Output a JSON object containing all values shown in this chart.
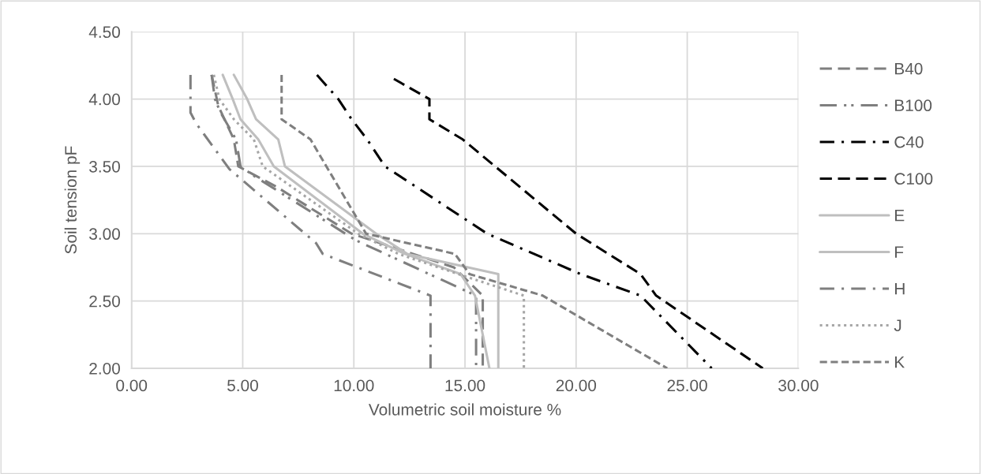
{
  "chart_data": {
    "type": "line",
    "xlabel": "Volumetric soil moisture %",
    "ylabel": "Soil tension pF",
    "xlim": [
      0,
      30
    ],
    "ylim": [
      2,
      4.5
    ],
    "xticks": [
      {
        "value": 0,
        "label": "0.00"
      },
      {
        "value": 5,
        "label": "5.00"
      },
      {
        "value": 10,
        "label": "10.00"
      },
      {
        "value": 15,
        "label": "15.00"
      },
      {
        "value": 20,
        "label": "20.00"
      },
      {
        "value": 25,
        "label": "25.00"
      },
      {
        "value": 30,
        "label": "30.00"
      }
    ],
    "yticks": [
      {
        "value": 2,
        "label": "2.00"
      },
      {
        "value": 2.5,
        "label": "2.50"
      },
      {
        "value": 3,
        "label": "3.00"
      },
      {
        "value": 3.5,
        "label": "3.50"
      },
      {
        "value": 4,
        "label": "4.00"
      },
      {
        "value": 4.5,
        "label": "4.50"
      }
    ],
    "grid": true,
    "legend": "right",
    "marker": "none",
    "series": [
      {
        "name": "B40",
        "color": "#7f7f7f",
        "line_style": "dashed",
        "x": [
          3.6,
          3.9,
          4.6,
          4.8,
          6.5,
          9.9,
          14.5,
          15.8,
          15.8
        ],
        "values": [
          4.18,
          3.95,
          3.7,
          3.5,
          3.35,
          3.0,
          2.75,
          2.54,
          2.0
        ]
      },
      {
        "name": "B100",
        "color": "#7f7f7f",
        "line_style": "dashdotdot",
        "x": [
          3.6,
          3.75,
          4.0,
          4.7,
          4.9,
          5.5,
          10.1,
          15.5,
          15.5
        ],
        "values": [
          4.18,
          4.0,
          3.9,
          3.7,
          3.5,
          3.43,
          2.95,
          2.54,
          2.0
        ]
      },
      {
        "name": "C40",
        "color": "#000000",
        "line_style": "dashdot",
        "x": [
          8.34,
          9.3,
          9.9,
          10.6,
          11.4,
          16.0,
          20.2,
          22.9,
          26.1
        ],
        "values": [
          4.18,
          4.0,
          3.85,
          3.7,
          3.5,
          3.0,
          2.7,
          2.54,
          2.0
        ]
      },
      {
        "name": "C100",
        "color": "#000000",
        "line_style": "dashed",
        "x": [
          11.8,
          13.4,
          13.4,
          14.9,
          20.0,
          22.9,
          23.6,
          28.4
        ],
        "values": [
          4.15,
          4.0,
          3.85,
          3.7,
          3.0,
          2.7,
          2.54,
          2.0
        ]
      },
      {
        "name": "E",
        "color": "#bfbfbf",
        "line_style": "solid",
        "x": [
          4.6,
          5.2,
          5.6,
          6.6,
          6.9,
          11.0,
          12.4,
          16.5,
          16.5
        ],
        "values": [
          4.18,
          4.0,
          3.85,
          3.7,
          3.5,
          3.0,
          2.85,
          2.7,
          2.0
        ]
      },
      {
        "name": "F",
        "color": "#bfbfbf",
        "line_style": "solid",
        "x": [
          4.1,
          4.55,
          4.9,
          5.7,
          6.4,
          10.4,
          12.3,
          14.8,
          15.45,
          16.1
        ],
        "values": [
          4.18,
          4.0,
          3.85,
          3.7,
          3.5,
          3.0,
          2.85,
          2.7,
          2.54,
          2.0
        ]
      },
      {
        "name": "H",
        "color": "#7f7f7f",
        "line_style": "dashdot",
        "x": [
          2.65,
          2.65,
          2.9,
          4.4,
          8.3,
          8.6,
          13.45,
          13.45
        ],
        "values": [
          4.18,
          3.9,
          3.82,
          3.48,
          2.93,
          2.85,
          2.54,
          2.0
        ]
      },
      {
        "name": "J",
        "color": "#a6a6a6",
        "line_style": "dotted",
        "x": [
          3.7,
          3.95,
          4.6,
          5.5,
          5.9,
          10.2,
          12.0,
          14.7,
          17.65,
          17.65
        ],
        "values": [
          4.18,
          4.0,
          3.85,
          3.7,
          3.5,
          3.0,
          2.85,
          2.7,
          2.54,
          2.0
        ]
      },
      {
        "name": "K",
        "color": "#7f7f7f",
        "line_style": "shortdash",
        "x": [
          6.75,
          6.75,
          8.05,
          10.55,
          14.55,
          15.2,
          18.5,
          24.1
        ],
        "values": [
          4.18,
          3.85,
          3.7,
          3.0,
          2.85,
          2.7,
          2.54,
          2.0
        ]
      }
    ]
  }
}
